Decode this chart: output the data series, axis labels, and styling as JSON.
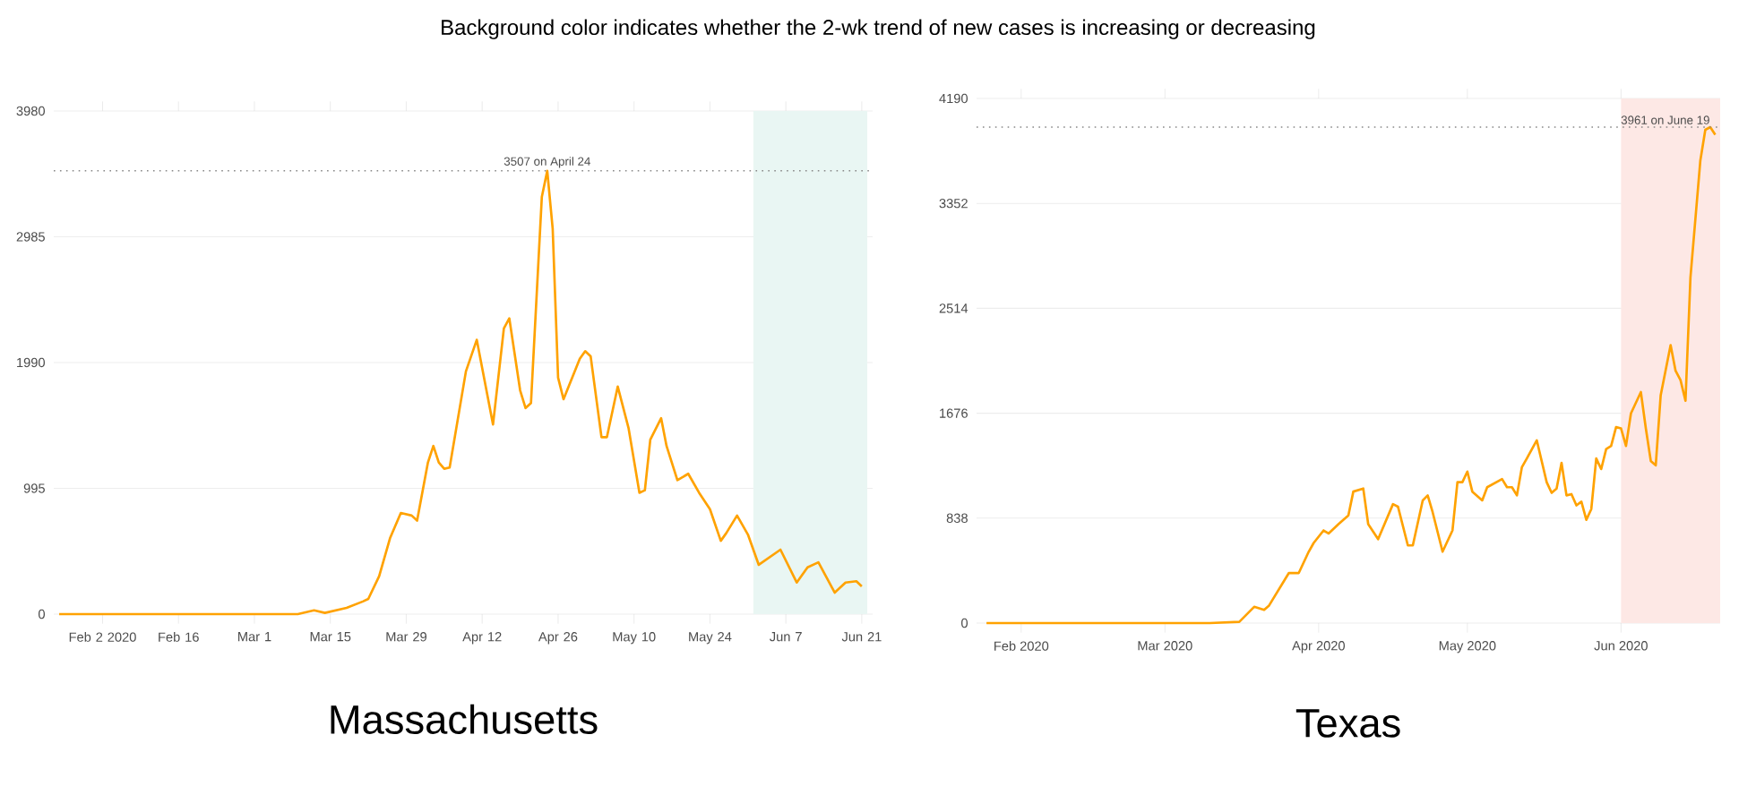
{
  "chart_data": [
    {
      "type": "line",
      "title": "Background color indicates whether the 2-wk trend of new cases is increasing or decreasing",
      "xlabel": "Massachusetts",
      "x": [
        "2020-01-25",
        "2020-02-10",
        "2020-03-01",
        "2020-03-09",
        "2020-03-12",
        "2020-03-14",
        "2020-03-18",
        "2020-03-21",
        "2020-03-22",
        "2020-03-24",
        "2020-03-26",
        "2020-03-28",
        "2020-03-30",
        "2020-03-31",
        "2020-04-02",
        "2020-04-03",
        "2020-04-04",
        "2020-04-05",
        "2020-04-06",
        "2020-04-09",
        "2020-04-11",
        "2020-04-14",
        "2020-04-16",
        "2020-04-17",
        "2020-04-19",
        "2020-04-20",
        "2020-04-21",
        "2020-04-23",
        "2020-04-24",
        "2020-04-25",
        "2020-04-26",
        "2020-04-27",
        "2020-04-30",
        "2020-05-01",
        "2020-05-02",
        "2020-05-04",
        "2020-05-05",
        "2020-05-07",
        "2020-05-09",
        "2020-05-11",
        "2020-05-12",
        "2020-05-13",
        "2020-05-15",
        "2020-05-16",
        "2020-05-18",
        "2020-05-20",
        "2020-05-22",
        "2020-05-24",
        "2020-05-26",
        "2020-05-27",
        "2020-05-29",
        "2020-05-31",
        "2020-06-02",
        "2020-06-06",
        "2020-06-09",
        "2020-06-11",
        "2020-06-13",
        "2020-06-16",
        "2020-06-18",
        "2020-06-20",
        "2020-06-21"
      ],
      "series": [
        {
          "color": "#ffa200",
          "values": [
            0,
            0,
            0,
            0,
            30,
            10,
            50,
            100,
            120,
            300,
            600,
            800,
            780,
            740,
            1200,
            1330,
            1200,
            1150,
            1160,
            1920,
            2170,
            1500,
            2260,
            2340,
            1770,
            1630,
            1670,
            3300,
            3507,
            3050,
            1870,
            1700,
            2020,
            2080,
            2040,
            1400,
            1400,
            1800,
            1470,
            960,
            980,
            1380,
            1550,
            1330,
            1060,
            1110,
            960,
            830,
            580,
            640,
            780,
            630,
            390,
            510,
            250,
            370,
            410,
            170,
            250,
            260,
            220
          ]
        }
      ],
      "xlim": [
        "2020-01-24",
        "2020-06-23"
      ],
      "ylim": [
        0,
        3980
      ],
      "xticks": [
        {
          "value": "2020-02-02",
          "label": "Feb 2 2020"
        },
        {
          "value": "2020-02-16",
          "label": "Feb 16"
        },
        {
          "value": "2020-03-01",
          "label": "Mar 1"
        },
        {
          "value": "2020-03-15",
          "label": "Mar 15"
        },
        {
          "value": "2020-03-29",
          "label": "Mar 29"
        },
        {
          "value": "2020-04-12",
          "label": "Apr 12"
        },
        {
          "value": "2020-04-26",
          "label": "Apr 26"
        },
        {
          "value": "2020-05-10",
          "label": "May 10"
        },
        {
          "value": "2020-05-24",
          "label": "May 24"
        },
        {
          "value": "2020-06-07",
          "label": "Jun 7"
        },
        {
          "value": "2020-06-21",
          "label": "Jun 21"
        }
      ],
      "yticks": [
        0,
        995,
        1990,
        2985,
        3980
      ],
      "grid": "y",
      "ref_lines": [
        {
          "axis": "y",
          "value": 3507,
          "label": "3507 on April 24",
          "color": "#888888",
          "line_style": "dotted"
        }
      ],
      "bands": [
        {
          "axis": "x",
          "from": "2020-06-01",
          "to": "2020-06-22",
          "color": "#e9f6f3"
        }
      ]
    },
    {
      "type": "line",
      "xlabel": "Texas",
      "x": [
        "2020-01-25",
        "2020-02-15",
        "2020-03-10",
        "2020-03-16",
        "2020-03-19",
        "2020-03-21",
        "2020-03-22",
        "2020-03-26",
        "2020-03-28",
        "2020-03-30",
        "2020-03-31",
        "2020-04-02",
        "2020-04-03",
        "2020-04-05",
        "2020-04-07",
        "2020-04-08",
        "2020-04-10",
        "2020-04-11",
        "2020-04-13",
        "2020-04-16",
        "2020-04-17",
        "2020-04-19",
        "2020-04-20",
        "2020-04-22",
        "2020-04-23",
        "2020-04-24",
        "2020-04-26",
        "2020-04-28",
        "2020-04-29",
        "2020-04-30",
        "2020-05-01",
        "2020-05-02",
        "2020-05-04",
        "2020-05-05",
        "2020-05-08",
        "2020-05-09",
        "2020-05-10",
        "2020-05-11",
        "2020-05-12",
        "2020-05-13",
        "2020-05-15",
        "2020-05-17",
        "2020-05-18",
        "2020-05-19",
        "2020-05-20",
        "2020-05-21",
        "2020-05-22",
        "2020-05-23",
        "2020-05-24",
        "2020-05-25",
        "2020-05-26",
        "2020-05-27",
        "2020-05-28",
        "2020-05-29",
        "2020-05-30",
        "2020-05-31",
        "2020-06-01",
        "2020-06-02",
        "2020-06-03",
        "2020-06-05",
        "2020-06-06",
        "2020-06-07",
        "2020-06-08",
        "2020-06-09",
        "2020-06-11",
        "2020-06-12",
        "2020-06-13",
        "2020-06-14",
        "2020-06-15",
        "2020-06-17",
        "2020-06-18",
        "2020-06-19",
        "2020-06-20"
      ],
      "series": [
        {
          "color": "#ffa200",
          "values": [
            0,
            0,
            0,
            10,
            130,
            105,
            140,
            400,
            400,
            570,
            640,
            740,
            715,
            790,
            860,
            1050,
            1075,
            790,
            670,
            950,
            930,
            620,
            620,
            980,
            1020,
            885,
            570,
            740,
            1125,
            1125,
            1210,
            1050,
            980,
            1085,
            1150,
            1085,
            1085,
            1020,
            1245,
            1315,
            1460,
            1125,
            1040,
            1075,
            1280,
            1020,
            1030,
            940,
            970,
            825,
            910,
            1315,
            1230,
            1390,
            1415,
            1565,
            1555,
            1415,
            1675,
            1845,
            1555,
            1295,
            1260,
            1820,
            2220,
            2015,
            1940,
            1775,
            2760,
            3695,
            3940,
            3961,
            3900
          ]
        }
      ],
      "xlim": [
        "2020-01-23",
        "2020-06-21"
      ],
      "ylim": [
        0,
        4190
      ],
      "xticks": [
        {
          "value": "2020-02-01",
          "label": "Feb 2020"
        },
        {
          "value": "2020-03-01",
          "label": "Mar 2020"
        },
        {
          "value": "2020-04-01",
          "label": "Apr 2020"
        },
        {
          "value": "2020-05-01",
          "label": "May 2020"
        },
        {
          "value": "2020-06-01",
          "label": "Jun 2020"
        }
      ],
      "yticks": [
        0,
        838,
        1676,
        2514,
        3352,
        4190
      ],
      "grid": "y",
      "ref_lines": [
        {
          "axis": "y",
          "value": 3961,
          "label": "3961 on June 19",
          "color": "#888888",
          "line_style": "dotted"
        }
      ],
      "bands": [
        {
          "axis": "x",
          "from": "2020-06-01",
          "to": "2020-06-21",
          "color": "#fde8e5"
        }
      ]
    }
  ]
}
